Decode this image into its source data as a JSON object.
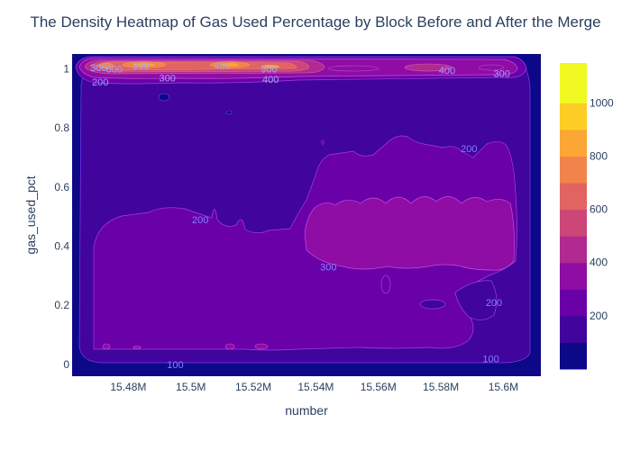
{
  "chart_data": {
    "type": "heatmap",
    "subtype": "density contour",
    "title": "The Density Heatmap of Gas Used Percentage by Block Before and After the Merge",
    "xlabel": "number",
    "ylabel": "gas_used_pct",
    "xlim": [
      15462000,
      15612000
    ],
    "ylim": [
      -0.04,
      1.05
    ],
    "x_ticks": [
      {
        "value": 15480000,
        "label": "15.48M"
      },
      {
        "value": 15500000,
        "label": "15.5M"
      },
      {
        "value": 15520000,
        "label": "15.52M"
      },
      {
        "value": 15540000,
        "label": "15.54M"
      },
      {
        "value": 15560000,
        "label": "15.56M"
      },
      {
        "value": 15580000,
        "label": "15.58M"
      },
      {
        "value": 15600000,
        "label": "15.6M"
      }
    ],
    "y_ticks": [
      {
        "value": 0,
        "label": "0"
      },
      {
        "value": 0.2,
        "label": "0.2"
      },
      {
        "value": 0.4,
        "label": "0.4"
      },
      {
        "value": 0.6,
        "label": "0.6"
      },
      {
        "value": 0.8,
        "label": "0.8"
      },
      {
        "value": 1,
        "label": "1"
      }
    ],
    "colorbar": {
      "range": [
        0,
        1150
      ],
      "tick_values": [
        200,
        400,
        600,
        800,
        1000
      ],
      "tick_labels": [
        "200",
        "400",
        "600",
        "800",
        "1000"
      ],
      "levels": [
        0,
        100,
        200,
        300,
        400,
        500,
        600,
        700,
        800,
        900,
        1000,
        1100,
        1150
      ],
      "colorscale": [
        "#0d0887",
        "#41049d",
        "#6a00a8",
        "#8f0da4",
        "#b12a90",
        "#cc4778",
        "#e16462",
        "#f2844b",
        "#fca636",
        "#fcce25",
        "#f0f921"
      ]
    },
    "contour_labels": [
      {
        "text": "200",
        "x": 15471000,
        "y": 0.955
      },
      {
        "text": "300",
        "x": 15470500,
        "y": 1.005
      },
      {
        "text": "600",
        "x": 15475500,
        "y": 1.0
      },
      {
        "text": "900",
        "x": 15484000,
        "y": 1.01
      },
      {
        "text": "300",
        "x": 15492500,
        "y": 0.97
      },
      {
        "text": "400",
        "x": 15510000,
        "y": 1.01
      },
      {
        "text": "900",
        "x": 15525000,
        "y": 1.0
      },
      {
        "text": "400",
        "x": 15525500,
        "y": 0.965
      },
      {
        "text": "400",
        "x": 15582000,
        "y": 0.995
      },
      {
        "text": "300",
        "x": 15599500,
        "y": 0.985
      },
      {
        "text": "200",
        "x": 15503000,
        "y": 0.49
      },
      {
        "text": "200",
        "x": 15589000,
        "y": 0.73
      },
      {
        "text": "300",
        "x": 15544000,
        "y": 0.33
      },
      {
        "text": "200",
        "x": 15597000,
        "y": 0.21
      },
      {
        "text": "100",
        "x": 15495000,
        "y": 0.0
      },
      {
        "text": "100",
        "x": 15596000,
        "y": 0.02
      }
    ]
  }
}
